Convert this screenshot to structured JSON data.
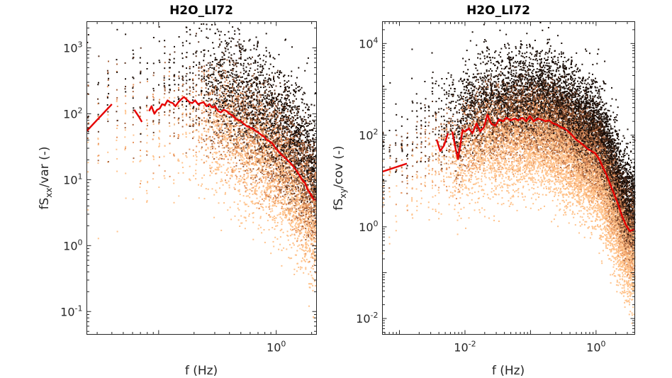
{
  "chart_data": [
    {
      "type": "scatter",
      "title": "H2O_LI72",
      "xlabel": "f (Hz)",
      "ylabel": "fS",
      "ylabel_sub": "xx",
      "ylabel_tail": "/var (-)",
      "x_scale": "log",
      "y_scale": "log",
      "xlim": [
        0.0245,
        2.2
      ],
      "ylim": [
        0.045,
        2500
      ],
      "xticks": [
        {
          "value": 1,
          "base": "10",
          "exp": "0"
        }
      ],
      "yticks": [
        {
          "value": 0.1,
          "base": "10",
          "exp": "-1"
        },
        {
          "value": 1,
          "base": "10",
          "exp": "0"
        },
        {
          "value": 10,
          "base": "10",
          "exp": "1"
        },
        {
          "value": 100,
          "base": "10",
          "exp": "2"
        },
        {
          "value": 1000,
          "base": "10",
          "exp": "3"
        }
      ],
      "grid": false,
      "scatter_colormap": [
        "#ffc38c",
        "#e8955e",
        "#a8643e",
        "#5a3320",
        "#1a0e08"
      ],
      "median_color": "#e60000",
      "median_series": [
        {
          "x": [
            0.0245,
            0.04
          ],
          "y": [
            55,
            140
          ]
        },
        {
          "x": [
            0.062,
            0.068,
            0.072
          ],
          "y": [
            115,
            90,
            75
          ]
        },
        {
          "x": [
            0.083,
            0.087,
            0.092,
            0.097,
            0.102,
            0.107,
            0.113,
            0.119,
            0.125,
            0.132,
            0.139,
            0.147,
            0.155,
            0.164,
            0.173,
            0.183,
            0.193,
            0.204,
            0.216,
            0.228,
            0.241,
            0.255,
            0.27,
            0.285,
            0.302,
            0.32,
            0.338,
            0.358,
            0.378,
            0.4,
            0.423,
            0.448,
            0.474,
            0.501,
            0.53,
            0.561,
            0.594,
            0.628,
            0.665,
            0.703,
            0.744,
            0.788,
            0.834,
            0.882,
            0.934,
            0.988,
            1.046,
            1.107,
            1.172,
            1.241,
            1.314,
            1.391,
            1.473,
            1.56,
            1.652,
            1.75,
            1.854,
            1.964,
            2.08,
            2.2
          ],
          "y": [
            110,
            130,
            100,
            115,
            120,
            140,
            135,
            160,
            150,
            145,
            130,
            150,
            165,
            180,
            165,
            150,
            145,
            160,
            140,
            145,
            150,
            130,
            140,
            125,
            130,
            110,
            105,
            115,
            110,
            100,
            95,
            85,
            80,
            78,
            70,
            65,
            62,
            60,
            55,
            52,
            48,
            45,
            40,
            38,
            35,
            30,
            27,
            24,
            22,
            20,
            18,
            16,
            14,
            12,
            10,
            9,
            7,
            6,
            5,
            5
          ]
        }
      ]
    },
    {
      "type": "scatter",
      "title": "H2O_LI72",
      "xlabel": "f (Hz)",
      "ylabel": "fS",
      "ylabel_sub": "xy",
      "ylabel_tail": "/cov (-)",
      "x_scale": "log",
      "y_scale": "log",
      "xlim": [
        0.00055,
        3.9
      ],
      "ylim": [
        0.0045,
        30000
      ],
      "xticks": [
        {
          "value": 0.01,
          "base": "10",
          "exp": "-2"
        },
        {
          "value": 1,
          "base": "10",
          "exp": "0"
        }
      ],
      "yticks": [
        {
          "value": 0.01,
          "base": "10",
          "exp": "-2"
        },
        {
          "value": 1,
          "base": "10",
          "exp": "0"
        },
        {
          "value": 100,
          "base": "10",
          "exp": "2"
        },
        {
          "value": 10000,
          "base": "10",
          "exp": "4"
        }
      ],
      "grid": false,
      "scatter_colormap": [
        "#ffc38c",
        "#e8955e",
        "#a8643e",
        "#5a3320",
        "#1a0e08"
      ],
      "median_color": "#e60000",
      "median_series": [
        {
          "x": [
            0.00055,
            0.0013
          ],
          "y": [
            16,
            24
          ]
        },
        {
          "x": [
            0.0037,
            0.0042,
            0.0048,
            0.0055
          ],
          "y": [
            80,
            45,
            60,
            110
          ]
        },
        {
          "x": [
            0.0064,
            0.0072,
            0.0078,
            0.0085,
            0.0092,
            0.01,
            0.0115,
            0.013,
            0.015,
            0.017,
            0.0195,
            0.022,
            0.025,
            0.029,
            0.033,
            0.038,
            0.043,
            0.05,
            0.057,
            0.065,
            0.075,
            0.086,
            0.098,
            0.112,
            0.128,
            0.147,
            0.168,
            0.192,
            0.22,
            0.252,
            0.288,
            0.33,
            0.378,
            0.432,
            0.495,
            0.566,
            0.648,
            0.742,
            0.85,
            0.973,
            1.114,
            1.275,
            1.46,
            1.67,
            1.91,
            2.19,
            2.5,
            2.86,
            3.27,
            3.9
          ],
          "y": [
            120,
            50,
            30,
            60,
            130,
            120,
            140,
            110,
            180,
            120,
            150,
            280,
            180,
            160,
            220,
            200,
            240,
            210,
            230,
            210,
            240,
            200,
            260,
            200,
            230,
            220,
            200,
            210,
            180,
            170,
            150,
            140,
            120,
            100,
            80,
            70,
            60,
            50,
            45,
            40,
            30,
            20,
            13,
            8,
            5,
            3,
            1.7,
            1.1,
            0.8,
            0.9
          ]
        }
      ]
    }
  ]
}
